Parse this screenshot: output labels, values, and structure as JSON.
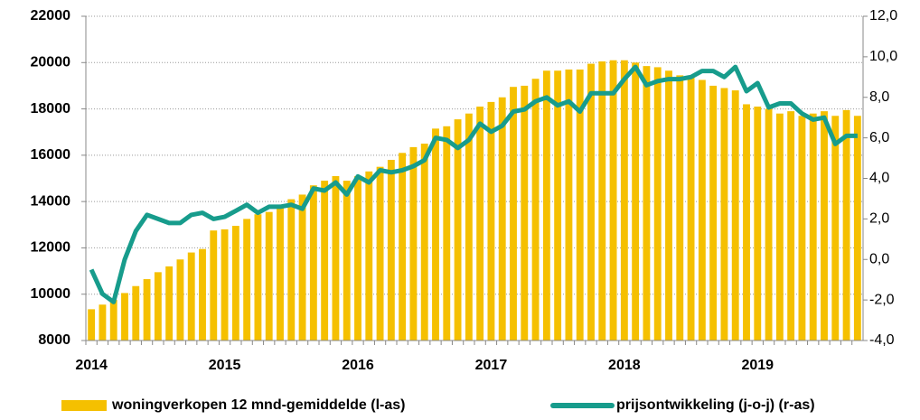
{
  "chart_data": {
    "type": "combo",
    "categories": [
      "2014",
      null,
      null,
      null,
      null,
      null,
      null,
      null,
      null,
      null,
      null,
      null,
      "2015",
      null,
      null,
      null,
      null,
      null,
      null,
      null,
      null,
      null,
      null,
      null,
      "2016",
      null,
      null,
      null,
      null,
      null,
      null,
      null,
      null,
      null,
      null,
      null,
      "2017",
      null,
      null,
      null,
      null,
      null,
      null,
      null,
      null,
      null,
      null,
      null,
      "2018",
      null,
      null,
      null,
      null,
      null,
      null,
      null,
      null,
      null,
      null,
      null,
      "2019",
      null,
      null,
      null,
      null,
      null,
      null,
      null,
      null,
      null
    ],
    "series": [
      {
        "name": "woningverkopen 12 mnd-gemiddelde (l-as)",
        "type": "bar",
        "color": "#f5c000",
        "axis": "y",
        "values": [
          9350,
          9550,
          9750,
          10050,
          10350,
          10650,
          10950,
          11200,
          11500,
          11800,
          11950,
          12750,
          12800,
          12950,
          13250,
          13450,
          13550,
          13800,
          14100,
          14300,
          14700,
          14900,
          15100,
          14900,
          15100,
          15300,
          15500,
          15800,
          16100,
          16350,
          16500,
          17150,
          17250,
          17550,
          17800,
          18100,
          18300,
          18500,
          18950,
          19000,
          19300,
          19650,
          19650,
          19700,
          19700,
          19950,
          20050,
          20100,
          20100,
          20000,
          19850,
          19800,
          19650,
          19450,
          19350,
          19250,
          19000,
          18900,
          18800,
          18200,
          18100,
          18000,
          17800,
          17900,
          17700,
          17800,
          17900,
          17700,
          17950,
          17700
        ]
      },
      {
        "name": "prijsontwikkeling (j-o-j) (r-as)",
        "type": "line",
        "color": "#179c8c",
        "axis": "y2",
        "values": [
          -0.5,
          -1.7,
          -2.1,
          0.0,
          1.4,
          2.2,
          2.0,
          1.8,
          1.8,
          2.2,
          2.3,
          2.0,
          2.1,
          2.4,
          2.7,
          2.3,
          2.6,
          2.6,
          2.7,
          2.5,
          3.5,
          3.4,
          3.8,
          3.2,
          4.1,
          3.8,
          4.4,
          4.3,
          4.4,
          4.6,
          4.9,
          6.0,
          5.9,
          5.5,
          5.9,
          6.7,
          6.3,
          6.6,
          7.3,
          7.4,
          7.8,
          8.0,
          7.6,
          7.8,
          7.3,
          8.2,
          8.2,
          8.2,
          8.9,
          9.5,
          8.6,
          8.8,
          8.9,
          8.9,
          9.0,
          9.3,
          9.3,
          9.0,
          9.5,
          8.3,
          8.7,
          7.5,
          7.7,
          7.7,
          7.2,
          6.9,
          7.0,
          5.7,
          6.1,
          6.1
        ]
      }
    ],
    "ylim": [
      8000,
      22000
    ],
    "yticks": [
      8000,
      10000,
      12000,
      14000,
      16000,
      18000,
      20000,
      22000
    ],
    "y2lim": [
      -4,
      12
    ],
    "y2ticks": [
      {
        "value": -4,
        "label": "-4,0"
      },
      {
        "value": -2,
        "label": "-2,0"
      },
      {
        "value": 0,
        "label": "0,0"
      },
      {
        "value": 2,
        "label": "2,0"
      },
      {
        "value": 4,
        "label": "4,0"
      },
      {
        "value": 6,
        "label": "6,0"
      },
      {
        "value": 8,
        "label": "8,0"
      },
      {
        "value": 10,
        "label": "10,0"
      },
      {
        "value": 12,
        "label": "12,0"
      }
    ],
    "grid": true,
    "legend": "bottom"
  }
}
